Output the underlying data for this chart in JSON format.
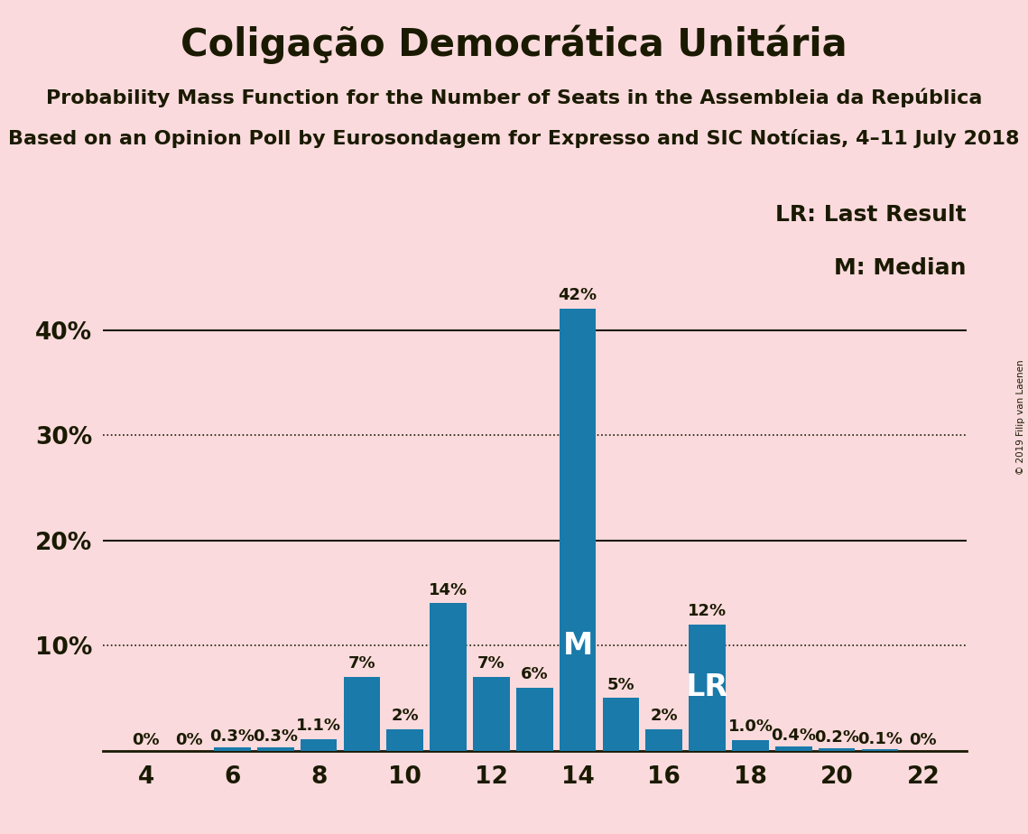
{
  "title": "Coligação Democrática Unitária",
  "subtitle1": "Probability Mass Function for the Number of Seats in the Assembleia da República",
  "subtitle2": "Based on an Opinion Poll by Eurosondagem for Expresso and SIC Notícias, 4–11 July 2018",
  "copyright": "© 2019 Filip van Laenen",
  "background_color": "#fadadd",
  "bar_color": "#1a7aaa",
  "seats": [
    4,
    5,
    6,
    7,
    8,
    9,
    10,
    11,
    12,
    13,
    14,
    15,
    16,
    17,
    18,
    19,
    20,
    21,
    22
  ],
  "probabilities": [
    0.0,
    0.0,
    0.3,
    0.3,
    1.1,
    7.0,
    2.0,
    14.0,
    7.0,
    6.0,
    42.0,
    5.0,
    2.0,
    12.0,
    1.0,
    0.4,
    0.2,
    0.1,
    0.0
  ],
  "labels": [
    "0%",
    "0%",
    "0.3%",
    "0.3%",
    "1.1%",
    "7%",
    "2%",
    "14%",
    "7%",
    "6%",
    "42%",
    "5%",
    "2%",
    "12%",
    "1.0%",
    "0.4%",
    "0.2%",
    "0.1%",
    "0%"
  ],
  "median_seat": 14,
  "lr_seat": 17,
  "yticks": [
    0,
    10,
    20,
    30,
    40
  ],
  "ylim": [
    0,
    46
  ],
  "dotted_lines": [
    10,
    30
  ],
  "solid_lines": [
    20,
    40
  ],
  "text_color": "#1a1a00",
  "title_fontsize": 30,
  "subtitle_fontsize": 16,
  "axis_tick_fontsize": 19,
  "bar_label_fontsize": 13,
  "legend_fontsize": 18,
  "median_label_fontsize": 24,
  "lr_label_fontsize": 24
}
